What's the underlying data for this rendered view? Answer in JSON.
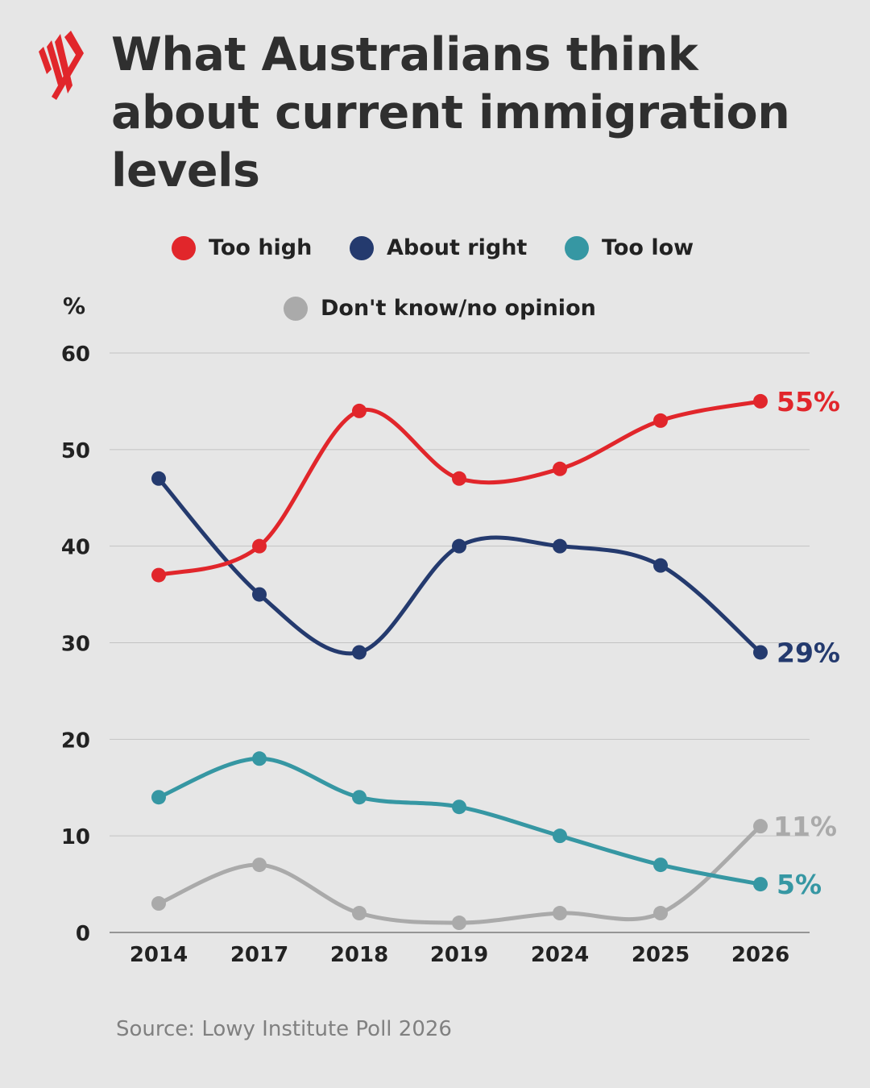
{
  "title_lines": [
    "What Australians think",
    "about current immigration",
    "levels"
  ],
  "source": "Source: Lowy Institute Poll 2026",
  "colors": {
    "background": "#e6e6e6",
    "too_high": "#e1262b",
    "about_right": "#243a6e",
    "too_low": "#3697a3",
    "dont_know": "#aaaaaa",
    "logo": "#e1262b"
  },
  "icons": {
    "logo": "sbs-logo-icon"
  },
  "chart_data": {
    "type": "line",
    "title": "What Australians think about current immigration levels",
    "ylabel": "%",
    "xlabel": "",
    "ylim": [
      0,
      60
    ],
    "yticks": [
      0,
      10,
      20,
      30,
      40,
      50,
      60
    ],
    "grid": true,
    "legend_position": "top",
    "categories": [
      "2014",
      "2017",
      "2018",
      "2019",
      "2024",
      "2025",
      "2026"
    ],
    "series": [
      {
        "name": "Too high",
        "color": "#e1262b",
        "values": [
          37,
          40,
          54,
          47,
          48,
          53,
          55
        ],
        "end_label": "55%"
      },
      {
        "name": "About right",
        "color": "#243a6e",
        "values": [
          47,
          35,
          29,
          40,
          40,
          38,
          29
        ],
        "end_label": "29%"
      },
      {
        "name": "Too low",
        "color": "#3697a3",
        "values": [
          14,
          18,
          14,
          13,
          10,
          7,
          5
        ],
        "end_label": "5%"
      },
      {
        "name": "Don't know/no opinion",
        "color": "#aaaaaa",
        "values": [
          3,
          7,
          2,
          1,
          2,
          2,
          11
        ],
        "end_label": "11%"
      }
    ]
  }
}
